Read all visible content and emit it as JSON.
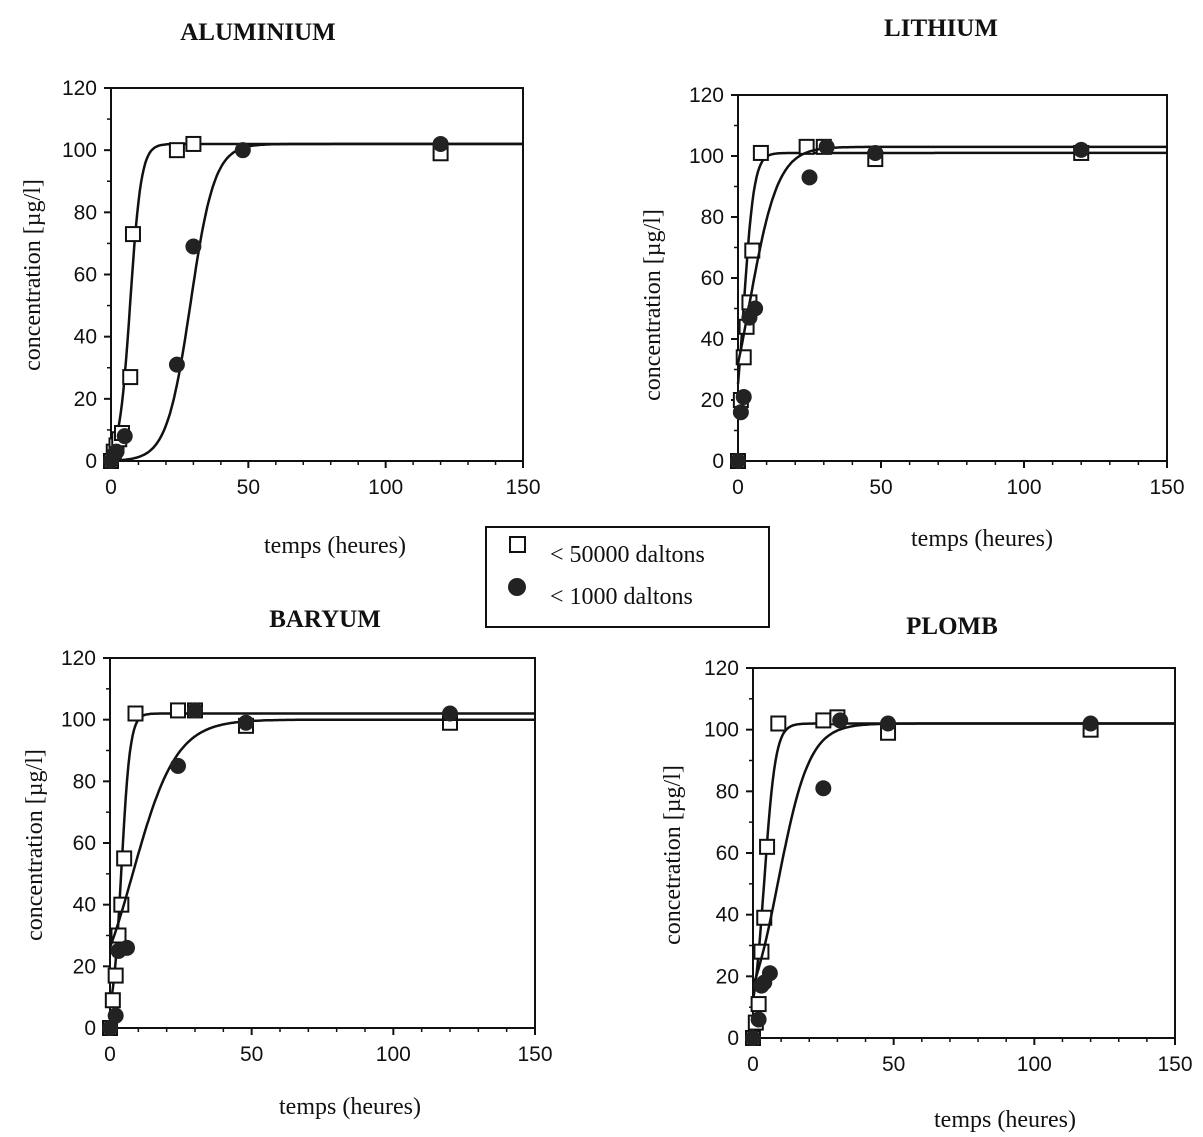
{
  "legend": {
    "series_a": "< 50000 daltons",
    "series_b": "< 1000 daltons"
  },
  "chart_data": [
    {
      "type": "scatter",
      "title": "ALUMINIUM",
      "xlabel": "temps (heures)",
      "ylabel": "concentration [µg/l]",
      "xlim": [
        0,
        150
      ],
      "ylim": [
        0,
        120
      ],
      "xticks": [
        0,
        50,
        100,
        150
      ],
      "yticks": [
        0,
        20,
        40,
        60,
        80,
        100,
        120
      ],
      "series": [
        {
          "name": "< 50000 daltons",
          "marker": "open-square",
          "x": [
            0,
            1,
            2,
            3,
            4,
            7,
            8,
            24,
            30,
            120
          ],
          "y": [
            0,
            3,
            5,
            7,
            9,
            27,
            73,
            100,
            102,
            99
          ],
          "fit": {
            "plateau": 102,
            "k": 0.5,
            "t0": 7
          }
        },
        {
          "name": "< 1000 daltons",
          "marker": "filled-circle",
          "x": [
            0,
            1,
            2,
            5,
            24,
            30,
            48,
            120
          ],
          "y": [
            0,
            2,
            3,
            8,
            31,
            69,
            100,
            102
          ],
          "fit": {
            "plateau": 102,
            "k": 0.23,
            "t0": 29
          }
        }
      ]
    },
    {
      "type": "scatter",
      "title": "LITHIUM",
      "xlabel": "temps (heures)",
      "ylabel": "concentration [µg/l]",
      "xlim": [
        0,
        150
      ],
      "ylim": [
        0,
        120
      ],
      "xticks": [
        0,
        50,
        100,
        150
      ],
      "yticks": [
        0,
        20,
        40,
        60,
        80,
        100,
        120
      ],
      "series": [
        {
          "name": "< 50000 daltons",
          "marker": "open-square",
          "x": [
            0,
            1,
            2,
            3,
            4,
            5,
            8,
            24,
            30,
            48,
            120
          ],
          "y": [
            0,
            20,
            34,
            44,
            52,
            69,
            101,
            103,
            103,
            99,
            101
          ],
          "fit": {
            "plateau": 101,
            "k": 0.55,
            "t0": 2
          }
        },
        {
          "name": "< 1000 daltons",
          "marker": "filled-circle",
          "x": [
            0,
            1,
            2,
            4,
            6,
            25,
            31,
            48,
            120
          ],
          "y": [
            0,
            16,
            21,
            47,
            50,
            93,
            103,
            101,
            102
          ],
          "fit": {
            "plateau": 103,
            "k": 0.2,
            "t0": 4
          }
        }
      ]
    },
    {
      "type": "scatter",
      "title": "BARYUM",
      "xlabel": "temps (heures)",
      "ylabel": "concentration [µg/l]",
      "xlim": [
        0,
        150
      ],
      "ylim": [
        0,
        120
      ],
      "xticks": [
        0,
        50,
        100,
        150
      ],
      "yticks": [
        0,
        20,
        40,
        60,
        80,
        100,
        120
      ],
      "series": [
        {
          "name": "< 50000 daltons",
          "marker": "open-square",
          "x": [
            0,
            1,
            2,
            3,
            4,
            5,
            9,
            24,
            30,
            48,
            120
          ],
          "y": [
            0,
            9,
            17,
            30,
            40,
            55,
            102,
            103,
            103,
            98,
            99
          ],
          "fit": {
            "plateau": 102,
            "k": 0.65,
            "t0": 4
          }
        },
        {
          "name": "< 1000 daltons",
          "marker": "filled-circle",
          "x": [
            0,
            2,
            3,
            6,
            24,
            30,
            48,
            120
          ],
          "y": [
            0,
            4,
            25,
            26,
            85,
            103,
            99,
            102
          ],
          "fit": {
            "plateau": 100,
            "k": 0.13,
            "t0": 8
          }
        }
      ]
    },
    {
      "type": "scatter",
      "title": "PLOMB",
      "xlabel": "temps (heures)",
      "ylabel": "concetration [µg/l]",
      "xlim": [
        0,
        150
      ],
      "ylim": [
        0,
        120
      ],
      "xticks": [
        0,
        50,
        100,
        150
      ],
      "yticks": [
        0,
        20,
        40,
        60,
        80,
        100,
        120
      ],
      "series": [
        {
          "name": "< 50000 daltons",
          "marker": "open-square",
          "x": [
            0,
            1,
            2,
            3,
            4,
            5,
            9,
            25,
            30,
            48,
            120
          ],
          "y": [
            0,
            5,
            11,
            28,
            39,
            62,
            102,
            103,
            104,
            99,
            100
          ],
          "fit": {
            "plateau": 102,
            "k": 0.5,
            "t0": 4
          }
        },
        {
          "name": "< 1000 daltons",
          "marker": "filled-circle",
          "x": [
            0,
            2,
            3,
            4,
            6,
            25,
            31,
            48,
            120
          ],
          "y": [
            0,
            6,
            17,
            18,
            21,
            81,
            103,
            102,
            102
          ],
          "fit": {
            "plateau": 102,
            "k": 0.18,
            "t0": 9
          }
        }
      ]
    }
  ]
}
